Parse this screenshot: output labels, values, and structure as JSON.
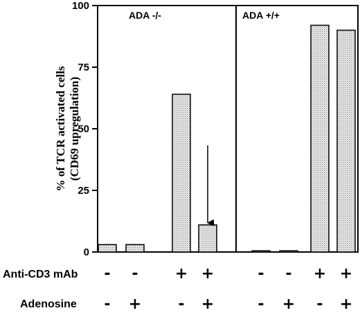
{
  "chart_data": {
    "type": "bar",
    "ylabel_line1": "% of TCR activated cells",
    "ylabel_line2": "(CD69 upregulation)",
    "ylim": [
      0,
      100
    ],
    "yticks": [
      "0",
      "25",
      "50",
      "75",
      "100"
    ],
    "panels": [
      {
        "label": "ADA -/-",
        "anti_cd3": [
          "-",
          "-",
          "+",
          "+"
        ],
        "adenosine": [
          "-",
          "+",
          "-",
          "+"
        ],
        "values": [
          3,
          3,
          64,
          11
        ],
        "arrow_on_bar": 3
      },
      {
        "label": "ADA  +/+",
        "anti_cd3": [
          "-",
          "-",
          "+",
          "+"
        ],
        "adenosine": [
          "-",
          "+",
          "-",
          "+"
        ],
        "values": [
          0.5,
          0.5,
          92,
          90
        ]
      }
    ],
    "row_labels": {
      "anti_cd3": "Anti-CD3 mAb",
      "adenosine": "Adenosine"
    },
    "bar_fill": "stippled light gray",
    "grid": false
  }
}
